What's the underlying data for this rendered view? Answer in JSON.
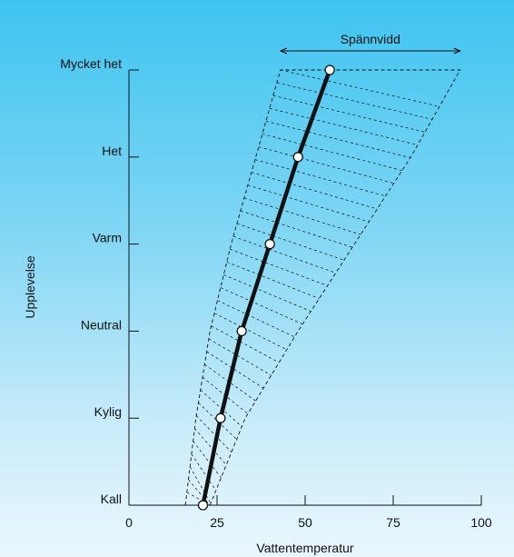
{
  "chart_data": {
    "type": "line",
    "title": "",
    "xlabel": "Vattentemperatur",
    "ylabel": "Upplevelse",
    "xlim": [
      0,
      100
    ],
    "x_ticks": [
      0,
      25,
      50,
      75,
      100
    ],
    "categories": [
      "Kall",
      "Kylig",
      "Neutral",
      "Varm",
      "Het",
      "Mycket het"
    ],
    "series": [
      {
        "values": [
          21,
          26,
          32,
          40,
          48,
          57
        ]
      }
    ],
    "range_band": {
      "label": "Spännvidd",
      "lower": [
        16,
        19,
        23,
        29,
        36,
        43
      ],
      "upper": [
        23,
        33,
        48,
        64,
        80,
        94
      ]
    },
    "grid": false,
    "legend": "none"
  },
  "colors": {
    "background_top": "#3ec4f0",
    "background_bottom": "#eaf7fd",
    "line": "#111111"
  }
}
